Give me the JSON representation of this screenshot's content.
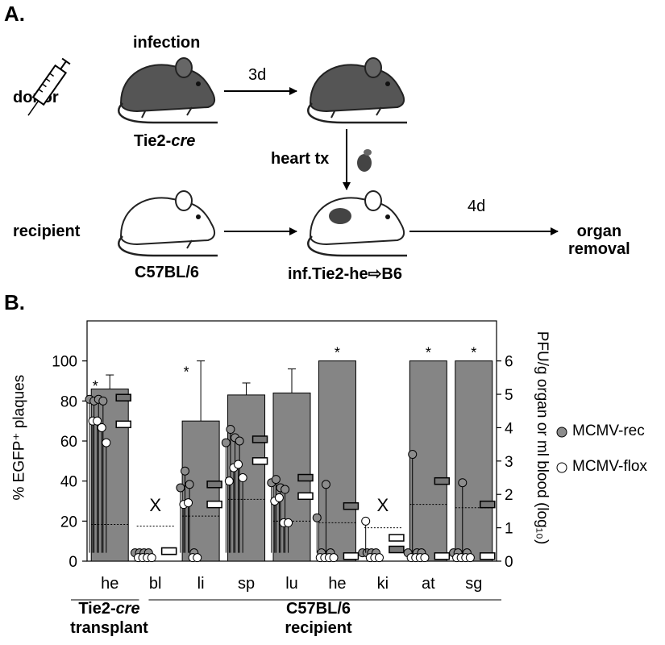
{
  "panel_a": {
    "label": "A.",
    "infection": "infection",
    "donor": "donor",
    "recipient": "recipient",
    "donor_strain_prefix": "Tie2-",
    "donor_strain_suffix": "cre",
    "recipient_strain": "C57BL/6",
    "step1": "3d",
    "step2": "heart tx",
    "step3": "4d",
    "chimera": "inf.Tie2-he⇨B6",
    "end_line1": "organ",
    "end_line2": "removal"
  },
  "panel_b": {
    "label": "B.",
    "group1_line1_prefix": "Tie2-",
    "group1_line1_suffix": "cre",
    "group1_line2": "transplant",
    "group2_line1": "C57BL/6",
    "group2_line2": "recipient",
    "not_detected_marker": "X",
    "significance_marker": "*"
  },
  "colors": {
    "bar": "#858585",
    "rec_marker": "#8c8c8c",
    "flox_marker": "#ffffff"
  },
  "chart_data": {
    "type": "bar",
    "categories": [
      "he",
      "bl",
      "li",
      "sp",
      "lu",
      "he",
      "ki",
      "at",
      "sg"
    ],
    "ylabel_left": "% EGFP⁺ plaques",
    "ylabel_right": "PFU/g organ or ml blood (log₁₀)",
    "ylim_left": [
      0,
      120
    ],
    "ylim_right": [
      0,
      7.2
    ],
    "left_ticks": [
      0,
      20,
      40,
      60,
      80,
      100
    ],
    "right_ticks": [
      0,
      1,
      2,
      3,
      4,
      5,
      6
    ],
    "series": [
      {
        "name": "",
        "values": [
          86,
          5,
          70,
          83,
          84,
          100,
          5,
          100,
          100
        ],
        "errors": [
          7,
          0,
          30,
          6,
          12,
          0,
          0,
          0,
          0
        ]
      }
    ],
    "detection_limit_log": [
      1.1,
      1.05,
      1.35,
      1.85,
      1.2,
      1.15,
      1.0,
      1.7,
      1.6
    ],
    "not_detected": [
      "bl",
      "ki"
    ],
    "significant": [
      "li",
      "he",
      "at",
      "sg"
    ],
    "legend": [
      {
        "name": "MCMV-rec",
        "marker": "filled-circle"
      },
      {
        "name": "MCMV-flox",
        "marker": "open-circle"
      }
    ],
    "mcmv_rec_log": [
      [
        4.85,
        4.8,
        4.85,
        4.8
      ],
      [
        0.25,
        0.25,
        0.25,
        0.25
      ],
      [
        2.2,
        2.7,
        2.3,
        0.25
      ],
      [
        3.55,
        3.95,
        3.7,
        3.6
      ],
      [
        2.35,
        2.45,
        2.2,
        2.15
      ],
      [
        1.3,
        0.25,
        2.3,
        0.25
      ],
      [
        0.25,
        0.25,
        0.25,
        0.25
      ],
      [
        0.25,
        3.2,
        0.25,
        0.25
      ],
      [
        0.25,
        0.25,
        2.35,
        0.25
      ]
    ],
    "mcmv_rec_median_log": [
      4.9,
      0.3,
      2.3,
      3.65,
      2.5,
      1.65,
      0.35,
      2.4,
      1.7
    ],
    "mcmv_flox_log": [
      [
        4.2,
        4.2,
        4.0,
        3.55
      ],
      [
        0.25,
        0.25,
        0.25,
        0.25
      ],
      [
        1.7,
        1.75,
        0.25,
        0.25
      ],
      [
        2.4,
        2.8,
        2.9,
        2.5
      ],
      [
        1.8,
        1.9,
        1.15,
        1.15
      ],
      [
        0.25,
        0.25,
        0.25,
        0.25
      ],
      [
        1.2,
        0.25,
        0.25,
        0.25
      ],
      [
        0.25,
        0.25,
        0.25,
        0.25
      ],
      [
        0.25,
        0.25,
        0.25,
        0.25
      ]
    ],
    "mcmv_flox_median_log": [
      4.1,
      0.3,
      1.7,
      3.0,
      1.95,
      0.15,
      0.7,
      0.15,
      0.15
    ]
  }
}
